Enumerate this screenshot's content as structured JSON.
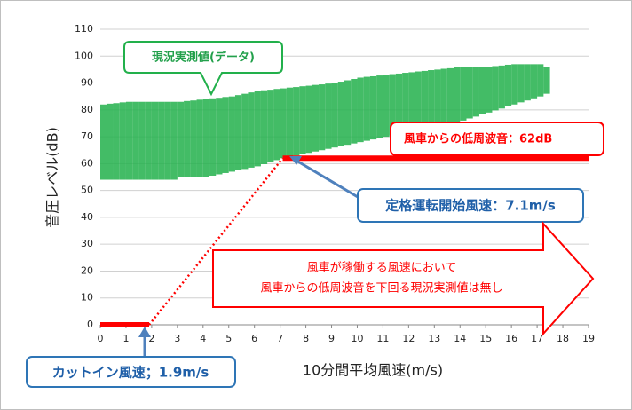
{
  "chart_data": {
    "type": "scatter",
    "x_label": "10分間平均風速(m/s)",
    "y_label": "音圧レベル(dB)",
    "xlim": [
      0,
      19
    ],
    "xticks": [
      0,
      1,
      2,
      3,
      4,
      5,
      6,
      7,
      8,
      9,
      10,
      11,
      12,
      13,
      14,
      15,
      16,
      17,
      18,
      19
    ],
    "ylim": [
      0,
      110
    ],
    "yticks": [
      0,
      10,
      20,
      30,
      40,
      50,
      60,
      70,
      80,
      90,
      100,
      110
    ],
    "grid": true,
    "cloud": {
      "name": "現況実測値(データ)",
      "color": "#22b04b",
      "x": [
        0,
        0.25,
        0.5,
        0.75,
        1,
        1.25,
        1.5,
        1.75,
        2,
        2.25,
        2.5,
        2.75,
        3,
        3.25,
        3.5,
        3.75,
        4,
        4.25,
        4.5,
        4.75,
        5,
        5.25,
        5.5,
        5.75,
        6,
        6.25,
        6.5,
        6.75,
        7,
        7.25,
        7.5,
        7.75,
        8,
        8.25,
        8.5,
        8.75,
        9,
        9.25,
        9.5,
        9.75,
        10,
        10.25,
        10.5,
        10.75,
        11,
        11.25,
        11.5,
        11.75,
        12,
        12.25,
        12.5,
        12.75,
        13,
        13.25,
        13.5,
        13.75,
        14,
        14.25,
        14.5,
        14.75,
        15,
        15.25,
        15.5,
        15.75,
        16,
        16.25,
        16.5,
        16.75,
        17,
        17.25
      ],
      "low": [
        54,
        54,
        54,
        54,
        54,
        54,
        54,
        54,
        54,
        54,
        54,
        54,
        55,
        55,
        55,
        55,
        55,
        55.5,
        56,
        56.5,
        57,
        57.5,
        58,
        58.5,
        59,
        59.8,
        60.5,
        61.3,
        62,
        62.5,
        63,
        63.5,
        64,
        64.5,
        65,
        65.5,
        66,
        66.5,
        67,
        67.5,
        68,
        68.5,
        69,
        69.5,
        70,
        70.5,
        71,
        71.5,
        72,
        72.5,
        73,
        73.5,
        74,
        74.5,
        75,
        75.5,
        76,
        76.8,
        77.5,
        78.3,
        79,
        79.8,
        80.5,
        81.3,
        82,
        82.8,
        83.5,
        84.3,
        85,
        86
      ],
      "high": [
        82,
        82.3,
        82.5,
        82.8,
        83,
        83,
        83,
        83,
        83,
        83,
        83,
        83,
        83,
        83.3,
        83.5,
        83.8,
        84,
        84.3,
        84.5,
        84.8,
        85,
        85.5,
        86,
        86.5,
        87,
        87.3,
        87.5,
        87.8,
        88,
        88.3,
        88.5,
        88.8,
        89,
        89.3,
        89.5,
        89.8,
        90,
        90.5,
        91,
        91.5,
        92,
        92.3,
        92.5,
        92.8,
        93,
        93.3,
        93.5,
        93.8,
        94,
        94.3,
        94.5,
        94.8,
        95,
        95.3,
        95.5,
        95.8,
        96,
        96,
        96,
        96,
        96,
        96.3,
        96.5,
        96.8,
        97,
        97,
        97,
        97,
        97,
        96
      ]
    },
    "lines": [
      {
        "color": "#ff0000",
        "style": "solid",
        "x": [
          0,
          1.9
        ],
        "y": [
          0,
          0
        ]
      },
      {
        "color": "#ff0000",
        "style": "dotted",
        "x": [
          1.9,
          7.1
        ],
        "y": [
          0,
          62
        ]
      },
      {
        "color": "#ff0000",
        "style": "solid",
        "x": [
          7.1,
          19
        ],
        "y": [
          62,
          62
        ]
      }
    ],
    "annotations": [
      "風車からの低周波音：62dB",
      "定格運転開始風速：7.1m/s",
      "カットイン風速；1.9m/s",
      "風車が稼働する風速において",
      "風車からの低周波音を下回る現況実測値は無し"
    ]
  }
}
